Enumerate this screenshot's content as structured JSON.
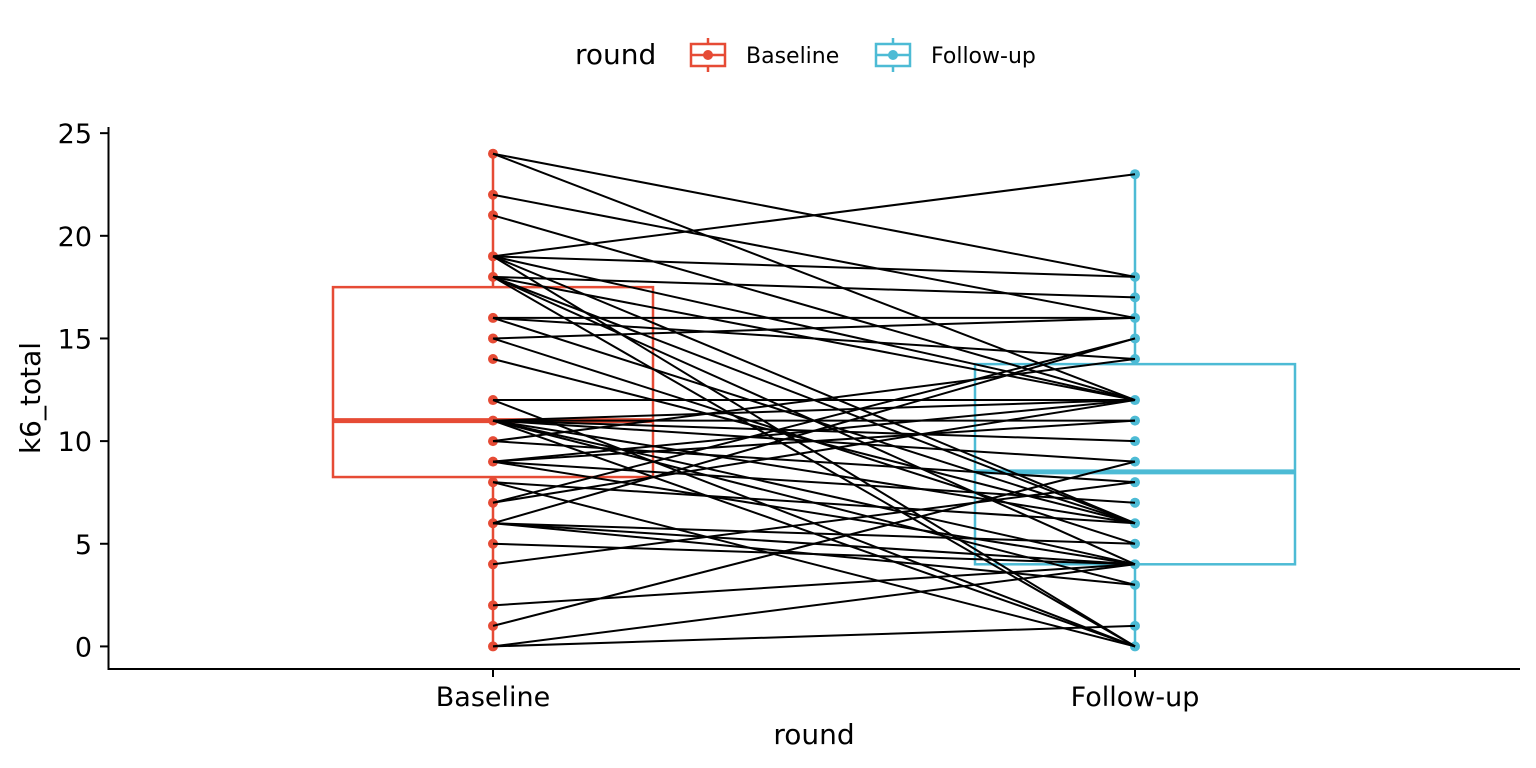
{
  "chart_data": {
    "type": "box",
    "xlabel": "round",
    "ylabel": "k6_total",
    "categories": [
      "Baseline",
      "Follow-up"
    ],
    "ylim": [
      -1.1,
      25.3
    ],
    "yticks": [
      0,
      5,
      10,
      15,
      20,
      25
    ],
    "grid": false,
    "legend": {
      "title": "round",
      "position": "top",
      "entries": [
        "Baseline",
        "Follow-up"
      ]
    },
    "colors": {
      "Baseline": "#E64B35",
      "Follow-up": "#4DBBD5"
    },
    "boxes": [
      {
        "name": "Baseline",
        "min": 0,
        "q1": 8.25,
        "median": 11,
        "q3": 17.5,
        "max": 24
      },
      {
        "name": "Follow-up",
        "min": 0,
        "q1": 4,
        "median": 8.5,
        "q3": 13.75,
        "max": 23
      }
    ],
    "pairs": [
      [
        24,
        18
      ],
      [
        24,
        12
      ],
      [
        22,
        16
      ],
      [
        21,
        12
      ],
      [
        19,
        23
      ],
      [
        19,
        18
      ],
      [
        19,
        12
      ],
      [
        19,
        6
      ],
      [
        19,
        0
      ],
      [
        18,
        17
      ],
      [
        18,
        12
      ],
      [
        18,
        6
      ],
      [
        18,
        4
      ],
      [
        18,
        0
      ],
      [
        16,
        16
      ],
      [
        16,
        14
      ],
      [
        16,
        6
      ],
      [
        15,
        16
      ],
      [
        15,
        5
      ],
      [
        14,
        6
      ],
      [
        12,
        12
      ],
      [
        12,
        0
      ],
      [
        11,
        12
      ],
      [
        11,
        11
      ],
      [
        11,
        10
      ],
      [
        11,
        9
      ],
      [
        11,
        6
      ],
      [
        11,
        3
      ],
      [
        11,
        0
      ],
      [
        11,
        4
      ],
      [
        10,
        14
      ],
      [
        10,
        8
      ],
      [
        9,
        11
      ],
      [
        9,
        12
      ],
      [
        9,
        7
      ],
      [
        9,
        4
      ],
      [
        8,
        6
      ],
      [
        8,
        0
      ],
      [
        7,
        15
      ],
      [
        7,
        12
      ],
      [
        6,
        15
      ],
      [
        6,
        5
      ],
      [
        6,
        4
      ],
      [
        6,
        3
      ],
      [
        5,
        4
      ],
      [
        4,
        8
      ],
      [
        2,
        4
      ],
      [
        1,
        9
      ],
      [
        0,
        4
      ],
      [
        0,
        1
      ]
    ]
  }
}
